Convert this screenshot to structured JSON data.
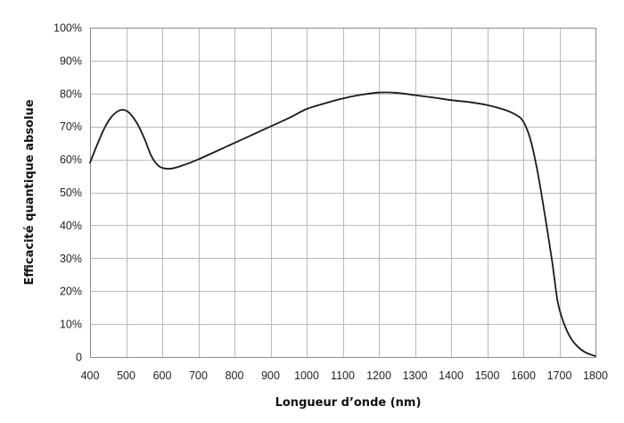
{
  "chart_data": {
    "type": "line",
    "title": "",
    "xlabel": "Longueur d’onde (nm)",
    "ylabel": "Efficacité quantique absolue",
    "xlim": [
      400,
      1800
    ],
    "ylim": [
      0,
      100
    ],
    "grid": true,
    "x_ticks": [
      "400",
      "500",
      "600",
      "700",
      "800",
      "900",
      "1000",
      "1100",
      "1200",
      "1300",
      "1400",
      "1500",
      "1600",
      "1700",
      "1800"
    ],
    "y_ticks": [
      "0",
      "10%",
      "20%",
      "30%",
      "40%",
      "50%",
      "60%",
      "70%",
      "80%",
      "90%",
      "100%"
    ],
    "series": [
      {
        "color": "#1a1a1a",
        "points": [
          [
            400,
            59
          ],
          [
            420,
            64.5
          ],
          [
            440,
            69.5
          ],
          [
            460,
            73
          ],
          [
            480,
            74.8
          ],
          [
            495,
            75
          ],
          [
            510,
            74
          ],
          [
            530,
            71
          ],
          [
            550,
            66.5
          ],
          [
            570,
            61
          ],
          [
            590,
            58
          ],
          [
            610,
            57.2
          ],
          [
            630,
            57.3
          ],
          [
            660,
            58.3
          ],
          [
            700,
            60
          ],
          [
            800,
            65
          ],
          [
            900,
            70
          ],
          [
            950,
            72.5
          ],
          [
            1000,
            75.3
          ],
          [
            1050,
            77
          ],
          [
            1100,
            78.5
          ],
          [
            1150,
            79.6
          ],
          [
            1200,
            80.3
          ],
          [
            1250,
            80.2
          ],
          [
            1300,
            79.5
          ],
          [
            1350,
            78.8
          ],
          [
            1400,
            78
          ],
          [
            1450,
            77.4
          ],
          [
            1500,
            76.5
          ],
          [
            1550,
            75
          ],
          [
            1580,
            73.5
          ],
          [
            1600,
            71.5
          ],
          [
            1620,
            66
          ],
          [
            1640,
            56
          ],
          [
            1660,
            43
          ],
          [
            1680,
            29
          ],
          [
            1695,
            17
          ],
          [
            1710,
            11
          ],
          [
            1730,
            6
          ],
          [
            1750,
            3.2
          ],
          [
            1770,
            1.5
          ],
          [
            1790,
            0.6
          ],
          [
            1800,
            0.3
          ]
        ]
      }
    ]
  }
}
